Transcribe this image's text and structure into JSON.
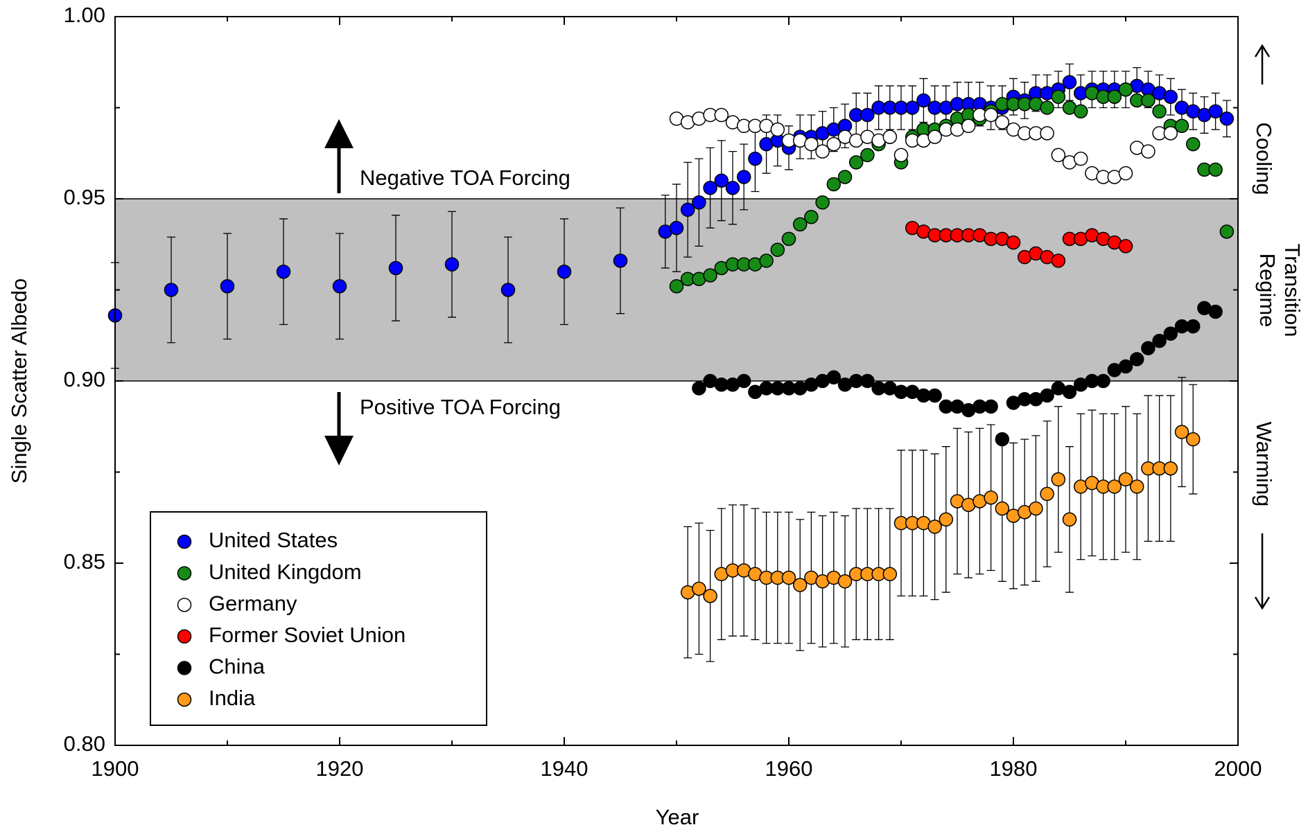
{
  "chart_data": {
    "type": "scatter",
    "x_label": "Year",
    "y_label": "Single Scatter Albedo",
    "xlim": [
      1900,
      2000
    ],
    "xticks": [
      1900,
      1920,
      1940,
      1960,
      1980,
      2000
    ],
    "xminorticks": [
      1910,
      1930,
      1950,
      1970,
      1990
    ],
    "ylim": [
      0.8,
      1.0
    ],
    "yticks": [
      {
        "value": 0.8,
        "label": "0.80"
      },
      0.85,
      {
        "value": 0.9,
        "label": "0.90"
      },
      0.95,
      {
        "value": 1.0,
        "label": "1.00"
      }
    ],
    "yminorticks": [
      0.825,
      0.875,
      0.925,
      0.975
    ],
    "shaded_band": [
      0.9,
      0.95
    ],
    "band_color": "#c0c0c0",
    "annotations": {
      "upper": "Negative TOA Forcing",
      "lower": "Positive TOA Forcing",
      "cooling": "Cooling",
      "transition": [
        "Transition",
        "Regime"
      ],
      "warming": "Warming"
    },
    "legend_position": "lower left",
    "series": [
      {
        "name": "United States",
        "color": "#0000ff",
        "x": [
          1900,
          1905,
          1910,
          1915,
          1920,
          1925,
          1930,
          1935,
          1940,
          1945,
          1949,
          1950,
          1951,
          1952,
          1953,
          1954,
          1955,
          1956,
          1957,
          1958,
          1959,
          1960,
          1961,
          1962,
          1963,
          1964,
          1965,
          1966,
          1967,
          1968,
          1969,
          1970,
          1971,
          1972,
          1973,
          1974,
          1975,
          1976,
          1977,
          1978,
          1979,
          1980,
          1981,
          1982,
          1983,
          1984,
          1985,
          1986,
          1987,
          1988,
          1989,
          1990,
          1991,
          1992,
          1993,
          1994,
          1995,
          1996,
          1997,
          1998,
          1999
        ],
        "values": [
          0.918,
          0.925,
          0.926,
          0.93,
          0.926,
          0.931,
          0.932,
          0.925,
          0.93,
          0.933,
          0.941,
          0.942,
          0.947,
          0.949,
          0.953,
          0.955,
          0.953,
          0.956,
          0.961,
          0.965,
          0.966,
          0.964,
          0.967,
          0.967,
          0.968,
          0.969,
          0.97,
          0.973,
          0.973,
          0.975,
          0.975,
          0.975,
          0.975,
          0.977,
          0.975,
          0.975,
          0.976,
          0.976,
          0.976,
          0.975,
          0.975,
          0.978,
          0.977,
          0.979,
          0.979,
          0.98,
          0.982,
          0.979,
          0.98,
          0.98,
          0.98,
          0.98,
          0.981,
          0.98,
          0.979,
          0.978,
          0.975,
          0.974,
          0.973,
          0.974,
          0.972
        ],
        "errors": [
          0.0145,
          0.0145,
          0.0145,
          0.0145,
          0.0145,
          0.0145,
          0.0145,
          0.0145,
          0.0145,
          0.0145,
          0.01,
          0.012,
          0.013,
          0.012,
          0.011,
          0.011,
          0.01,
          0.009,
          0.009,
          0.008,
          0.007,
          0.006,
          0.006,
          0.006,
          0.006,
          0.006,
          0.006,
          0.006,
          0.006,
          0.006,
          0.006,
          0.006,
          0.006,
          0.006,
          0.006,
          0.006,
          0.006,
          0.006,
          0.006,
          0.006,
          0.006,
          0.005,
          0.005,
          0.005,
          0.005,
          0.005,
          0.005,
          0.005,
          0.005,
          0.005,
          0.005,
          0.005,
          0.005,
          0.005,
          0.005,
          0.005,
          0.005,
          0.005,
          0.005,
          0.005,
          0.005
        ]
      },
      {
        "name": "United Kingdom",
        "color": "#168a16",
        "x": [
          1950,
          1951,
          1952,
          1953,
          1954,
          1955,
          1956,
          1957,
          1958,
          1959,
          1960,
          1961,
          1962,
          1963,
          1964,
          1965,
          1966,
          1967,
          1968,
          1969,
          1970,
          1971,
          1972,
          1973,
          1974,
          1975,
          1976,
          1977,
          1978,
          1979,
          1980,
          1981,
          1982,
          1983,
          1984,
          1985,
          1986,
          1987,
          1988,
          1989,
          1990,
          1991,
          1992,
          1993,
          1994,
          1995,
          1996,
          1997,
          1998,
          1999
        ],
        "values": [
          0.926,
          0.928,
          0.928,
          0.929,
          0.931,
          0.932,
          0.932,
          0.932,
          0.933,
          0.936,
          0.939,
          0.943,
          0.945,
          0.949,
          0.954,
          0.956,
          0.96,
          0.962,
          0.965,
          0.967,
          0.96,
          0.967,
          0.969,
          0.969,
          0.97,
          0.972,
          0.973,
          0.972,
          0.974,
          0.976,
          0.976,
          0.976,
          0.976,
          0.975,
          0.978,
          0.975,
          0.974,
          0.979,
          0.978,
          0.978,
          0.98,
          0.977,
          0.977,
          0.974,
          0.97,
          0.97,
          0.965,
          0.958,
          0.958,
          0.941
        ]
      },
      {
        "name": "Germany",
        "color": "#ffffff",
        "x": [
          1950,
          1951,
          1952,
          1953,
          1954,
          1955,
          1956,
          1957,
          1958,
          1959,
          1960,
          1961,
          1962,
          1963,
          1964,
          1965,
          1966,
          1967,
          1968,
          1969,
          1970,
          1971,
          1972,
          1973,
          1974,
          1975,
          1976,
          1977,
          1978,
          1979,
          1980,
          1981,
          1982,
          1983,
          1984,
          1985,
          1986,
          1987,
          1988,
          1989,
          1990,
          1991,
          1992,
          1993,
          1994
        ],
        "values": [
          0.972,
          0.971,
          0.972,
          0.973,
          0.973,
          0.971,
          0.97,
          0.97,
          0.97,
          0.969,
          0.966,
          0.966,
          0.965,
          0.963,
          0.965,
          0.967,
          0.966,
          0.967,
          0.966,
          0.967,
          0.962,
          0.966,
          0.966,
          0.967,
          0.969,
          0.969,
          0.97,
          0.973,
          0.973,
          0.971,
          0.969,
          0.968,
          0.968,
          0.968,
          0.962,
          0.96,
          0.961,
          0.957,
          0.956,
          0.956,
          0.957,
          0.964,
          0.963,
          0.968,
          0.968
        ]
      },
      {
        "name": "Former Soviet Union",
        "color": "#ff0000",
        "x": [
          1971,
          1972,
          1973,
          1974,
          1975,
          1976,
          1977,
          1978,
          1979,
          1980,
          1981,
          1982,
          1983,
          1984,
          1985,
          1986,
          1987,
          1988,
          1989,
          1990
        ],
        "values": [
          0.942,
          0.941,
          0.94,
          0.94,
          0.94,
          0.94,
          0.94,
          0.939,
          0.939,
          0.938,
          0.934,
          0.935,
          0.934,
          0.933,
          0.939,
          0.939,
          0.94,
          0.939,
          0.938,
          0.937
        ]
      },
      {
        "name": "China",
        "color": "#000000",
        "x": [
          1952,
          1953,
          1954,
          1955,
          1956,
          1957,
          1958,
          1959,
          1960,
          1961,
          1962,
          1963,
          1964,
          1965,
          1966,
          1967,
          1968,
          1969,
          1970,
          1971,
          1972,
          1973,
          1974,
          1975,
          1976,
          1977,
          1978,
          1979,
          1980,
          1981,
          1982,
          1983,
          1984,
          1985,
          1986,
          1987,
          1988,
          1989,
          1990,
          1991,
          1992,
          1993,
          1994,
          1995,
          1996,
          1997,
          1998
        ],
        "values": [
          0.898,
          0.9,
          0.899,
          0.899,
          0.9,
          0.897,
          0.898,
          0.898,
          0.898,
          0.898,
          0.899,
          0.9,
          0.901,
          0.899,
          0.9,
          0.9,
          0.898,
          0.898,
          0.897,
          0.897,
          0.896,
          0.896,
          0.893,
          0.893,
          0.892,
          0.893,
          0.893,
          0.884,
          0.894,
          0.895,
          0.895,
          0.896,
          0.898,
          0.897,
          0.899,
          0.9,
          0.9,
          0.903,
          0.904,
          0.906,
          0.909,
          0.911,
          0.913,
          0.915,
          0.915,
          0.92,
          0.919
        ]
      },
      {
        "name": "India",
        "color": "#ff9a1a",
        "x": [
          1951,
          1952,
          1953,
          1954,
          1955,
          1956,
          1957,
          1958,
          1959,
          1960,
          1961,
          1962,
          1963,
          1964,
          1965,
          1966,
          1967,
          1968,
          1969,
          1970,
          1971,
          1972,
          1973,
          1974,
          1975,
          1976,
          1977,
          1978,
          1979,
          1980,
          1981,
          1982,
          1983,
          1984,
          1985,
          1986,
          1987,
          1988,
          1989,
          1990,
          1991,
          1992,
          1993,
          1994,
          1995,
          1996
        ],
        "values": [
          0.842,
          0.843,
          0.841,
          0.847,
          0.848,
          0.848,
          0.847,
          0.846,
          0.846,
          0.846,
          0.844,
          0.846,
          0.845,
          0.846,
          0.845,
          0.847,
          0.847,
          0.847,
          0.847,
          0.861,
          0.861,
          0.861,
          0.86,
          0.862,
          0.867,
          0.866,
          0.867,
          0.868,
          0.865,
          0.863,
          0.864,
          0.865,
          0.869,
          0.873,
          0.862,
          0.871,
          0.872,
          0.871,
          0.871,
          0.873,
          0.871,
          0.876,
          0.876,
          0.876,
          0.886,
          0.884
        ],
        "errors": [
          0.018,
          0.018,
          0.018,
          0.018,
          0.018,
          0.018,
          0.018,
          0.018,
          0.018,
          0.018,
          0.018,
          0.018,
          0.018,
          0.018,
          0.018,
          0.018,
          0.018,
          0.018,
          0.018,
          0.02,
          0.02,
          0.02,
          0.02,
          0.02,
          0.02,
          0.02,
          0.02,
          0.02,
          0.02,
          0.02,
          0.02,
          0.02,
          0.02,
          0.02,
          0.02,
          0.02,
          0.02,
          0.02,
          0.02,
          0.02,
          0.02,
          0.02,
          0.02,
          0.02,
          0.015,
          0.015
        ]
      }
    ]
  }
}
